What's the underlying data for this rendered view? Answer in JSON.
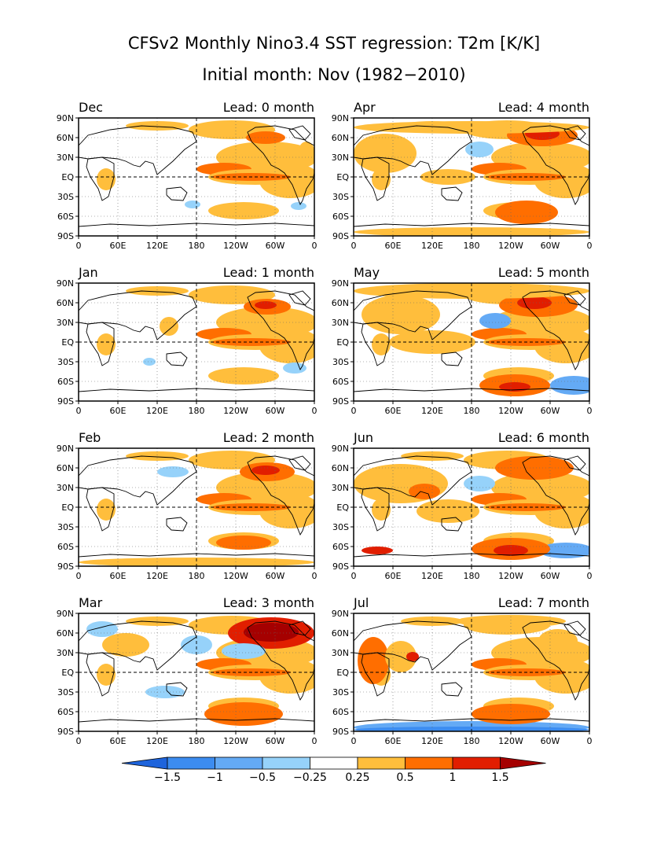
{
  "title": "CFSv2 Monthly Nino3.4 SST regression: T2m [K/K]",
  "subtitle": "Initial month: Nov (1982−2010)",
  "panels": [
    {
      "month": "Dec",
      "lead": "Lead: 0 month"
    },
    {
      "month": "Apr",
      "lead": "Lead: 4 month"
    },
    {
      "month": "Jan",
      "lead": "Lead: 1 month"
    },
    {
      "month": "May",
      "lead": "Lead: 5 month"
    },
    {
      "month": "Feb",
      "lead": "Lead: 2 month"
    },
    {
      "month": "Jun",
      "lead": "Lead: 6 month"
    },
    {
      "month": "Mar",
      "lead": "Lead: 3 month"
    },
    {
      "month": "Jul",
      "lead": "Lead: 7 month"
    }
  ],
  "lat_ticks": [
    "90N",
    "60N",
    "30N",
    "EQ",
    "30S",
    "60S",
    "90S"
  ],
  "lon_ticks": [
    "0",
    "60E",
    "120E",
    "180",
    "120W",
    "60W",
    "0"
  ],
  "colorbar": {
    "labels": [
      "−1.5",
      "−1",
      "−0.5",
      "−0.25",
      "0.25",
      "0.5",
      "1",
      "1.5"
    ],
    "colors": [
      "#1e64dc",
      "#3c8cf0",
      "#64aaf5",
      "#96d2fa",
      "#ffffff",
      "#ffbe3c",
      "#ff6e00",
      "#e11e00",
      "#a50000"
    ]
  },
  "chart_data": {
    "type": "heatmap",
    "variable": "T2m",
    "units": "K/K",
    "levels": [
      -1.5,
      -1,
      -0.5,
      -0.25,
      0.25,
      0.5,
      1,
      1.5
    ],
    "panels": [
      {
        "month": "Dec",
        "lead": 0
      },
      {
        "month": "Jan",
        "lead": 1
      },
      {
        "month": "Feb",
        "lead": 2
      },
      {
        "month": "Mar",
        "lead": 3
      },
      {
        "month": "Apr",
        "lead": 4
      },
      {
        "month": "May",
        "lead": 5
      },
      {
        "month": "Jun",
        "lead": 6
      },
      {
        "month": "Jul",
        "lead": 7
      }
    ]
  }
}
